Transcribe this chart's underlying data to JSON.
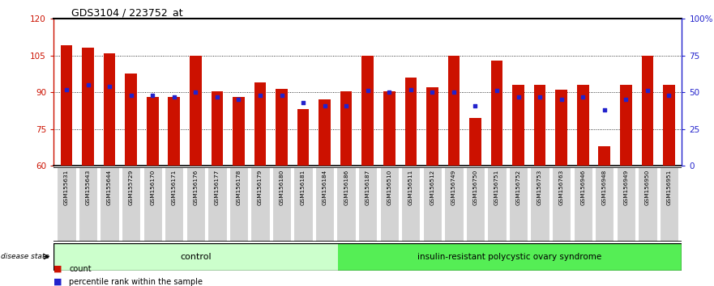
{
  "title": "GDS3104 / 223752_at",
  "samples": [
    "GSM155631",
    "GSM155643",
    "GSM155644",
    "GSM155729",
    "GSM156170",
    "GSM156171",
    "GSM156176",
    "GSM156177",
    "GSM156178",
    "GSM156179",
    "GSM156180",
    "GSM156181",
    "GSM156184",
    "GSM156186",
    "GSM156187",
    "GSM156510",
    "GSM156511",
    "GSM156512",
    "GSM156749",
    "GSM156750",
    "GSM156751",
    "GSM156752",
    "GSM156753",
    "GSM156763",
    "GSM156946",
    "GSM156948",
    "GSM156949",
    "GSM156950",
    "GSM156951"
  ],
  "bar_values": [
    109.0,
    108.0,
    106.0,
    97.5,
    88.0,
    88.0,
    105.0,
    90.5,
    88.0,
    94.0,
    91.5,
    83.0,
    87.0,
    90.5,
    105.0,
    90.5,
    96.0,
    92.0,
    105.0,
    79.5,
    103.0,
    93.0,
    93.0,
    91.0,
    93.0,
    68.0,
    93.0,
    105.0,
    93.0
  ],
  "blue_pct": [
    52,
    55,
    54,
    48,
    48,
    47,
    50,
    47,
    45,
    48,
    48,
    43,
    41,
    41,
    51,
    50,
    52,
    50,
    50,
    41,
    51,
    47,
    47,
    45,
    47,
    38,
    45,
    51,
    48
  ],
  "control_count": 13,
  "ylim_left": [
    60,
    120
  ],
  "ylim_right": [
    0,
    100
  ],
  "yticks_left": [
    60,
    75,
    90,
    105,
    120
  ],
  "yticks_right": [
    0,
    25,
    50,
    75,
    100
  ],
  "ytick_right_labels": [
    "0",
    "25",
    "50",
    "75",
    "100%"
  ],
  "bar_color": "#CC1100",
  "blue_color": "#2222CC",
  "bar_width": 0.55,
  "control_label": "control",
  "disease_label": "insulin-resistant polycystic ovary syndrome",
  "control_bg": "#CCFFCC",
  "disease_bg": "#55EE55",
  "legend_count_label": "count",
  "legend_pct_label": "percentile rank within the sample",
  "n_samples": 29
}
